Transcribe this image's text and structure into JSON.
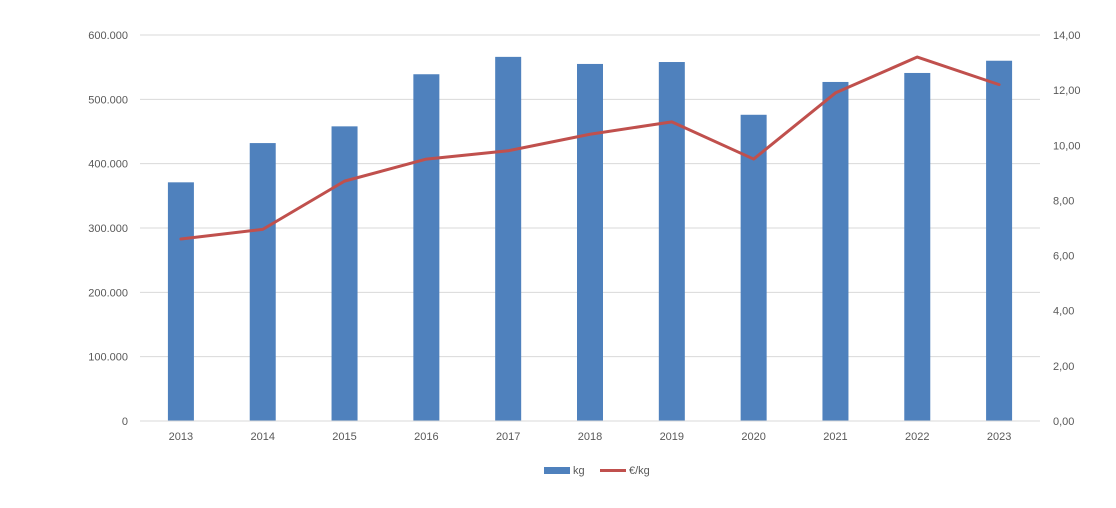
{
  "chart_data": {
    "type": "bar",
    "categories": [
      "2013",
      "2014",
      "2015",
      "2016",
      "2017",
      "2018",
      "2019",
      "2020",
      "2021",
      "2022",
      "2023"
    ],
    "series": [
      {
        "name": "kg",
        "type": "bar",
        "axis": "left",
        "color": "#4f81bd",
        "values": [
          371000,
          432000,
          458000,
          539000,
          566000,
          555000,
          558000,
          476000,
          527000,
          541000,
          560000
        ]
      },
      {
        "name": "€/kg",
        "type": "line",
        "axis": "right",
        "color": "#c0504d",
        "values": [
          6.6,
          6.95,
          8.7,
          9.5,
          9.8,
          10.4,
          10.85,
          9.5,
          11.9,
          13.2,
          12.2
        ]
      }
    ],
    "y_left": {
      "ylim": [
        0,
        600000
      ],
      "tick_labels": [
        "0",
        "100.000",
        "200.000",
        "300.000",
        "400.000",
        "500.000",
        "600.000"
      ]
    },
    "y_right": {
      "ylim": [
        0,
        14
      ],
      "tick_labels": [
        "0,00",
        "2,00",
        "4,00",
        "6,00",
        "8,00",
        "10,00",
        "12,00",
        "14,00"
      ]
    },
    "grid": true,
    "legend": "bottom"
  }
}
